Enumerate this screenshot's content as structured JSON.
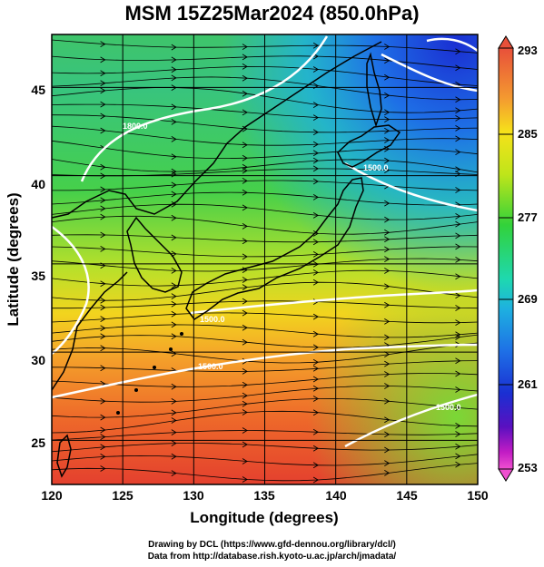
{
  "title": "MSM 15Z25Mar2024 (850.0hPa)",
  "x_axis": {
    "label": "Longitude (degrees)",
    "ticks": [
      "120",
      "125",
      "130",
      "135",
      "140",
      "145",
      "150"
    ]
  },
  "y_axis": {
    "label": "Latitude  (degrees)",
    "ticks": [
      "25",
      "30",
      "35",
      "40",
      "45"
    ]
  },
  "colorbar": {
    "ticks": [
      "293",
      "285",
      "277",
      "269",
      "261",
      "253"
    ],
    "colors": [
      "#e8503a",
      "#f49a30",
      "#f6e21a",
      "#bfe51a",
      "#32d23a",
      "#1ed8b0",
      "#1eb0e0",
      "#1e70e6",
      "#1a2fd2",
      "#5a10c0",
      "#c21cc4",
      "#f050d0"
    ]
  },
  "map_data": {
    "region": {
      "lon": [
        120,
        150
      ],
      "lat": [
        22.5,
        48
      ]
    },
    "field": "temperature (K) with streamlines",
    "contour_labels": [
      "1800.0",
      "1500.0",
      "1500.0",
      "1500.0",
      "1500.0"
    ]
  },
  "credits": [
    "Drawing by DCL (https://www.gfd-dennou.org/library/dcl/)",
    "Data from http://database.rish.kyoto-u.ac.jp/arch/jmadata/"
  ]
}
